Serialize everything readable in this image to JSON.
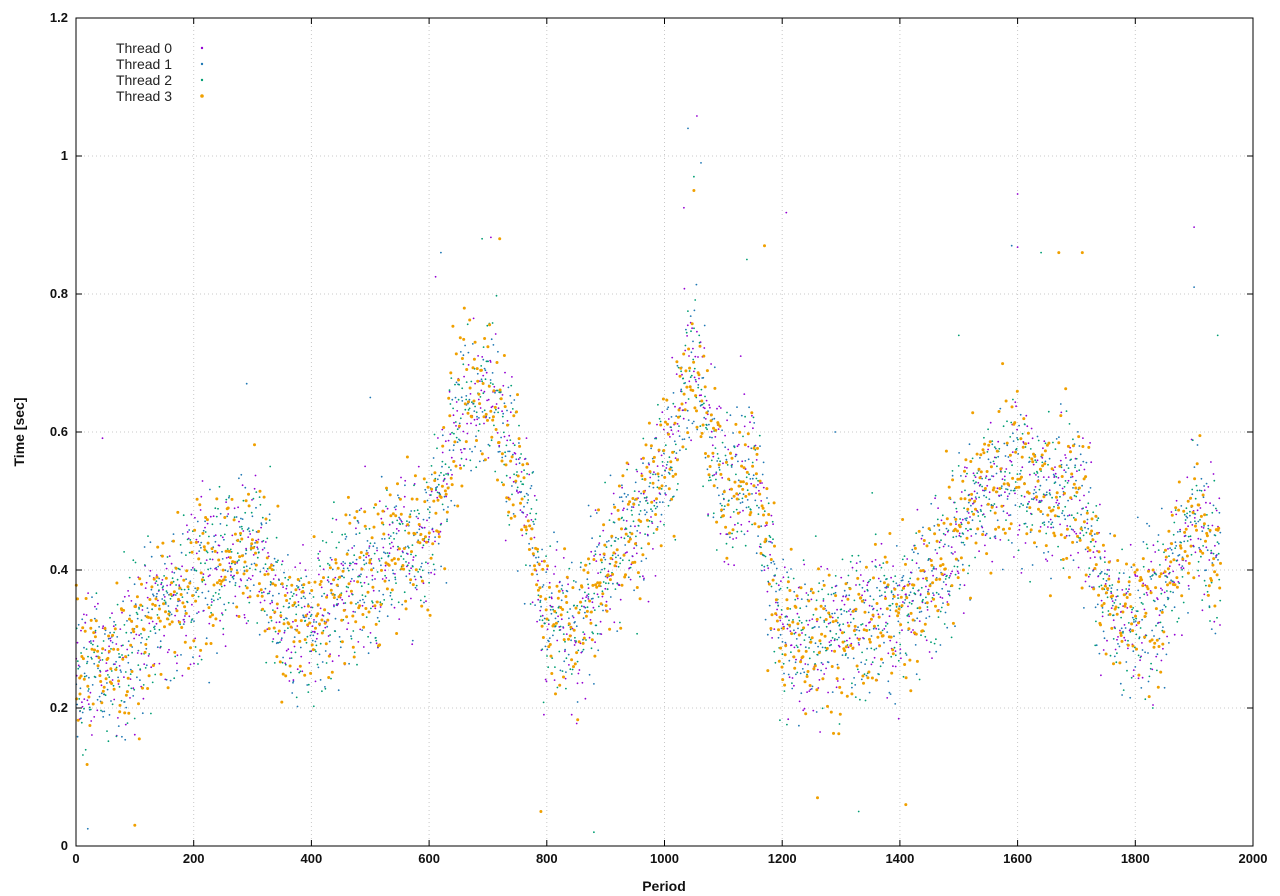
{
  "chart_data": {
    "type": "scatter",
    "title": "",
    "xlabel": "Period",
    "ylabel": "Time [sec]",
    "xlim": [
      0,
      2000
    ],
    "ylim": [
      0,
      1.2
    ],
    "x_ticks": [
      0,
      200,
      400,
      600,
      800,
      1000,
      1200,
      1400,
      1600,
      1800,
      2000
    ],
    "y_ticks": [
      0,
      0.2,
      0.4,
      0.6,
      0.8,
      1,
      1.2
    ],
    "x_tick_labels": [
      "0",
      "200",
      "400",
      "600",
      "800",
      "1000",
      "1200",
      "1400",
      "1600",
      "1800",
      "2000"
    ],
    "y_tick_labels": [
      "0",
      "0.2",
      "0.4",
      "0.6",
      "0.8",
      "1",
      "1.2"
    ],
    "grid": true,
    "legend_position": "top-left",
    "series_trend": {
      "x": [
        0,
        50,
        100,
        150,
        200,
        250,
        300,
        350,
        400,
        450,
        500,
        550,
        600,
        650,
        700,
        750,
        800,
        850,
        900,
        950,
        1000,
        1050,
        1100,
        1150,
        1200,
        1250,
        1300,
        1350,
        1400,
        1450,
        1500,
        1550,
        1600,
        1650,
        1700,
        1750,
        1800,
        1850,
        1900,
        1940
      ],
      "y": [
        0.24,
        0.27,
        0.29,
        0.35,
        0.38,
        0.41,
        0.45,
        0.33,
        0.32,
        0.37,
        0.4,
        0.43,
        0.45,
        0.63,
        0.68,
        0.55,
        0.33,
        0.31,
        0.42,
        0.46,
        0.55,
        0.7,
        0.52,
        0.55,
        0.31,
        0.29,
        0.31,
        0.34,
        0.33,
        0.38,
        0.45,
        0.52,
        0.55,
        0.5,
        0.53,
        0.35,
        0.33,
        0.36,
        0.48,
        0.42
      ]
    },
    "series": [
      {
        "name": "Thread 0",
        "color": "#9400d3",
        "points": [
          [
            1055,
            1.058
          ],
          [
            1600,
            0.945
          ],
          [
            1900,
            0.897
          ],
          [
            705,
            0.882
          ],
          [
            1600,
            0.868
          ],
          [
            1033,
            0.925
          ],
          [
            611,
            0.825
          ],
          [
            45,
            0.591
          ],
          [
            1207,
            0.918
          ]
        ]
      },
      {
        "name": "Thread 1",
        "color": "#1f78b4",
        "points": [
          [
            1040,
            1.04
          ],
          [
            1062,
            0.99
          ],
          [
            500,
            0.65
          ],
          [
            290,
            0.67
          ],
          [
            620,
            0.86
          ],
          [
            1900,
            0.81
          ],
          [
            1590,
            0.87
          ],
          [
            1290,
            0.6
          ],
          [
            20,
            0.025
          ]
        ]
      },
      {
        "name": "Thread 2",
        "color": "#009e73",
        "points": [
          [
            1050,
            0.97
          ],
          [
            690,
            0.88
          ],
          [
            1140,
            0.85
          ],
          [
            1640,
            0.86
          ],
          [
            1500,
            0.74
          ],
          [
            1940,
            0.74
          ],
          [
            880,
            0.02
          ],
          [
            1330,
            0.05
          ],
          [
            330,
            0.55
          ]
        ]
      },
      {
        "name": "Thread 3",
        "color": "#f0a000",
        "points": [
          [
            720,
            0.88
          ],
          [
            1170,
            0.87
          ],
          [
            1670,
            0.86
          ],
          [
            1710,
            0.86
          ],
          [
            1050,
            0.95
          ],
          [
            100,
            0.03
          ],
          [
            1260,
            0.07
          ],
          [
            790,
            0.05
          ],
          [
            1410,
            0.06
          ]
        ]
      }
    ]
  }
}
